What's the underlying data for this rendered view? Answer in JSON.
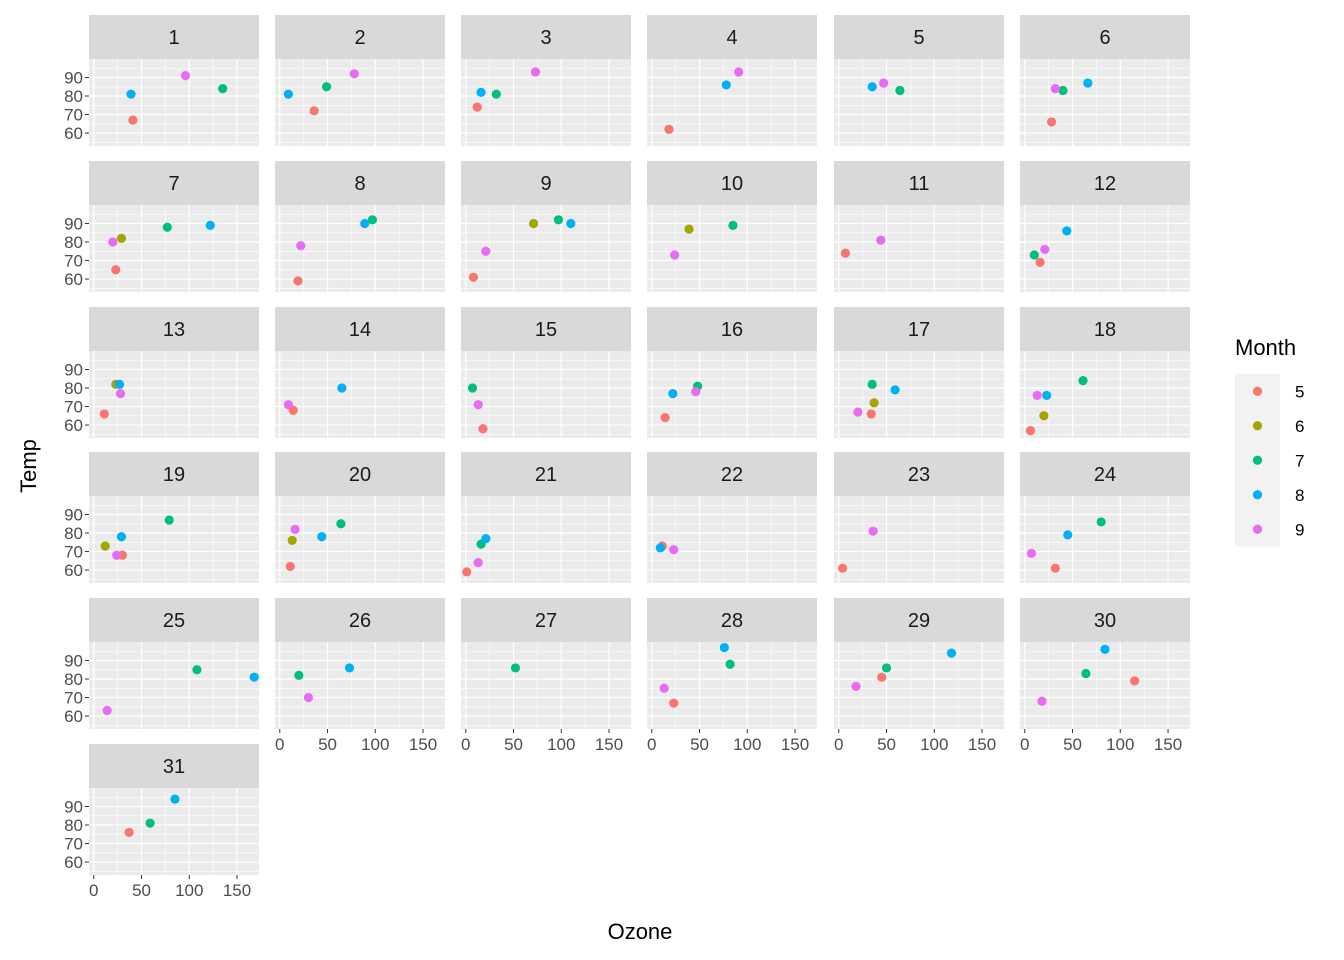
{
  "chart_data": {
    "type": "scatter",
    "facet_by": "Day",
    "xlabel": "Ozone",
    "ylabel": "Temp",
    "xlim": [
      -5,
      173
    ],
    "ylim": [
      53,
      100
    ],
    "x_ticks": [
      0,
      50,
      100,
      150
    ],
    "y_ticks": [
      60,
      70,
      80,
      90
    ],
    "grid": true,
    "legend": {
      "title": "Month",
      "position": "right",
      "entries": [
        {
          "label": "5",
          "color": "#F8766D"
        },
        {
          "label": "6",
          "color": "#A3A500"
        },
        {
          "label": "7",
          "color": "#00BF7D"
        },
        {
          "label": "8",
          "color": "#00B0F6"
        },
        {
          "label": "9",
          "color": "#E76BF3"
        }
      ]
    },
    "facets": [
      {
        "label": "1",
        "points": [
          {
            "x": 41,
            "y": 67,
            "month": "5"
          },
          {
            "x": 135,
            "y": 84,
            "month": "7"
          },
          {
            "x": 39,
            "y": 81,
            "month": "8"
          },
          {
            "x": 96,
            "y": 91,
            "month": "9"
          }
        ]
      },
      {
        "label": "2",
        "points": [
          {
            "x": 36,
            "y": 72,
            "month": "5"
          },
          {
            "x": 49,
            "y": 85,
            "month": "7"
          },
          {
            "x": 9,
            "y": 81,
            "month": "8"
          },
          {
            "x": 78,
            "y": 92,
            "month": "9"
          }
        ]
      },
      {
        "label": "3",
        "points": [
          {
            "x": 12,
            "y": 74,
            "month": "5"
          },
          {
            "x": 32,
            "y": 81,
            "month": "7"
          },
          {
            "x": 16,
            "y": 82,
            "month": "8"
          },
          {
            "x": 73,
            "y": 93,
            "month": "9"
          }
        ]
      },
      {
        "label": "4",
        "points": [
          {
            "x": 18,
            "y": 62,
            "month": "5"
          },
          {
            "x": 78,
            "y": 86,
            "month": "8"
          },
          {
            "x": 91,
            "y": 93,
            "month": "9"
          }
        ]
      },
      {
        "label": "5",
        "points": [
          {
            "x": 64,
            "y": 83,
            "month": "7"
          },
          {
            "x": 35,
            "y": 85,
            "month": "8"
          },
          {
            "x": 47,
            "y": 87,
            "month": "9"
          }
        ]
      },
      {
        "label": "6",
        "points": [
          {
            "x": 28,
            "y": 66,
            "month": "5"
          },
          {
            "x": 40,
            "y": 83,
            "month": "7"
          },
          {
            "x": 66,
            "y": 87,
            "month": "8"
          },
          {
            "x": 32,
            "y": 84,
            "month": "9"
          }
        ]
      },
      {
        "label": "7",
        "points": [
          {
            "x": 23,
            "y": 65,
            "month": "5"
          },
          {
            "x": 29,
            "y": 82,
            "month": "6"
          },
          {
            "x": 77,
            "y": 88,
            "month": "7"
          },
          {
            "x": 122,
            "y": 89,
            "month": "8"
          },
          {
            "x": 20,
            "y": 80,
            "month": "9"
          }
        ]
      },
      {
        "label": "8",
        "points": [
          {
            "x": 19,
            "y": 59,
            "month": "5"
          },
          {
            "x": 97,
            "y": 92,
            "month": "7"
          },
          {
            "x": 89,
            "y": 90,
            "month": "8"
          },
          {
            "x": 22,
            "y": 78,
            "month": "9"
          }
        ]
      },
      {
        "label": "9",
        "points": [
          {
            "x": 8,
            "y": 61,
            "month": "5"
          },
          {
            "x": 71,
            "y": 90,
            "month": "6"
          },
          {
            "x": 97,
            "y": 92,
            "month": "7"
          },
          {
            "x": 110,
            "y": 90,
            "month": "8"
          },
          {
            "x": 21,
            "y": 75,
            "month": "9"
          }
        ]
      },
      {
        "label": "10",
        "points": [
          {
            "x": 39,
            "y": 87,
            "month": "6"
          },
          {
            "x": 85,
            "y": 89,
            "month": "7"
          },
          {
            "x": 24,
            "y": 73,
            "month": "9"
          }
        ]
      },
      {
        "label": "11",
        "points": [
          {
            "x": 7,
            "y": 74,
            "month": "5"
          },
          {
            "x": 44,
            "y": 81,
            "month": "9"
          }
        ]
      },
      {
        "label": "12",
        "points": [
          {
            "x": 16,
            "y": 69,
            "month": "5"
          },
          {
            "x": 10,
            "y": 73,
            "month": "7"
          },
          {
            "x": 44,
            "y": 86,
            "month": "8"
          },
          {
            "x": 21,
            "y": 76,
            "month": "9"
          }
        ]
      },
      {
        "label": "13",
        "points": [
          {
            "x": 11,
            "y": 66,
            "month": "5"
          },
          {
            "x": 23,
            "y": 82,
            "month": "6"
          },
          {
            "x": 27,
            "y": 82,
            "month": "8"
          },
          {
            "x": 28,
            "y": 77,
            "month": "9"
          }
        ]
      },
      {
        "label": "14",
        "points": [
          {
            "x": 14,
            "y": 68,
            "month": "5"
          },
          {
            "x": 65,
            "y": 80,
            "month": "8"
          },
          {
            "x": 9,
            "y": 71,
            "month": "9"
          }
        ]
      },
      {
        "label": "15",
        "points": [
          {
            "x": 18,
            "y": 58,
            "month": "5"
          },
          {
            "x": 7,
            "y": 80,
            "month": "7"
          },
          {
            "x": 13,
            "y": 71,
            "month": "9"
          }
        ]
      },
      {
        "label": "16",
        "points": [
          {
            "x": 14,
            "y": 64,
            "month": "5"
          },
          {
            "x": 48,
            "y": 81,
            "month": "7"
          },
          {
            "x": 22,
            "y": 77,
            "month": "8"
          },
          {
            "x": 46,
            "y": 78,
            "month": "9"
          }
        ]
      },
      {
        "label": "17",
        "points": [
          {
            "x": 34,
            "y": 66,
            "month": "5"
          },
          {
            "x": 37,
            "y": 72,
            "month": "6"
          },
          {
            "x": 35,
            "y": 82,
            "month": "7"
          },
          {
            "x": 59,
            "y": 79,
            "month": "8"
          },
          {
            "x": 20,
            "y": 67,
            "month": "9"
          }
        ]
      },
      {
        "label": "18",
        "points": [
          {
            "x": 6,
            "y": 57,
            "month": "5"
          },
          {
            "x": 20,
            "y": 65,
            "month": "6"
          },
          {
            "x": 61,
            "y": 84,
            "month": "7"
          },
          {
            "x": 23,
            "y": 76,
            "month": "8"
          },
          {
            "x": 13,
            "y": 76,
            "month": "9"
          }
        ]
      },
      {
        "label": "19",
        "points": [
          {
            "x": 30,
            "y": 68,
            "month": "5"
          },
          {
            "x": 12,
            "y": 73,
            "month": "6"
          },
          {
            "x": 79,
            "y": 87,
            "month": "7"
          },
          {
            "x": 29,
            "y": 78,
            "month": "8"
          },
          {
            "x": 24,
            "y": 68,
            "month": "9"
          }
        ]
      },
      {
        "label": "20",
        "points": [
          {
            "x": 11,
            "y": 62,
            "month": "5"
          },
          {
            "x": 13,
            "y": 76,
            "month": "6"
          },
          {
            "x": 64,
            "y": 85,
            "month": "7"
          },
          {
            "x": 44,
            "y": 78,
            "month": "8"
          },
          {
            "x": 16,
            "y": 82,
            "month": "9"
          }
        ]
      },
      {
        "label": "21",
        "points": [
          {
            "x": 1,
            "y": 59,
            "month": "5"
          },
          {
            "x": 16,
            "y": 74,
            "month": "7"
          },
          {
            "x": 21,
            "y": 77,
            "month": "8"
          },
          {
            "x": 13,
            "y": 64,
            "month": "9"
          }
        ]
      },
      {
        "label": "22",
        "points": [
          {
            "x": 11,
            "y": 73,
            "month": "5"
          },
          {
            "x": 9,
            "y": 72,
            "month": "8"
          },
          {
            "x": 23,
            "y": 71,
            "month": "9"
          }
        ]
      },
      {
        "label": "23",
        "points": [
          {
            "x": 4,
            "y": 61,
            "month": "5"
          },
          {
            "x": 36,
            "y": 81,
            "month": "9"
          }
        ]
      },
      {
        "label": "24",
        "points": [
          {
            "x": 32,
            "y": 61,
            "month": "5"
          },
          {
            "x": 80,
            "y": 86,
            "month": "7"
          },
          {
            "x": 45,
            "y": 79,
            "month": "8"
          },
          {
            "x": 7,
            "y": 69,
            "month": "9"
          }
        ]
      },
      {
        "label": "25",
        "points": [
          {
            "x": 108,
            "y": 85,
            "month": "7"
          },
          {
            "x": 168,
            "y": 81,
            "month": "8"
          },
          {
            "x": 14,
            "y": 63,
            "month": "9"
          }
        ]
      },
      {
        "label": "26",
        "points": [
          {
            "x": 20,
            "y": 82,
            "month": "7"
          },
          {
            "x": 73,
            "y": 86,
            "month": "8"
          },
          {
            "x": 30,
            "y": 70,
            "month": "9"
          }
        ]
      },
      {
        "label": "27",
        "points": [
          {
            "x": 52,
            "y": 86,
            "month": "7"
          }
        ]
      },
      {
        "label": "28",
        "points": [
          {
            "x": 23,
            "y": 67,
            "month": "5"
          },
          {
            "x": 82,
            "y": 88,
            "month": "7"
          },
          {
            "x": 76,
            "y": 97,
            "month": "8"
          },
          {
            "x": 13,
            "y": 75,
            "month": "9"
          }
        ]
      },
      {
        "label": "29",
        "points": [
          {
            "x": 45,
            "y": 81,
            "month": "5"
          },
          {
            "x": 50,
            "y": 86,
            "month": "7"
          },
          {
            "x": 118,
            "y": 94,
            "month": "8"
          },
          {
            "x": 18,
            "y": 76,
            "month": "9"
          }
        ]
      },
      {
        "label": "30",
        "points": [
          {
            "x": 115,
            "y": 79,
            "month": "5"
          },
          {
            "x": 64,
            "y": 83,
            "month": "7"
          },
          {
            "x": 84,
            "y": 96,
            "month": "8"
          },
          {
            "x": 18,
            "y": 68,
            "month": "9"
          }
        ]
      },
      {
        "label": "31",
        "points": [
          {
            "x": 37,
            "y": 76,
            "month": "5"
          },
          {
            "x": 59,
            "y": 81,
            "month": "7"
          },
          {
            "x": 85,
            "y": 94,
            "month": "8"
          }
        ]
      }
    ]
  }
}
